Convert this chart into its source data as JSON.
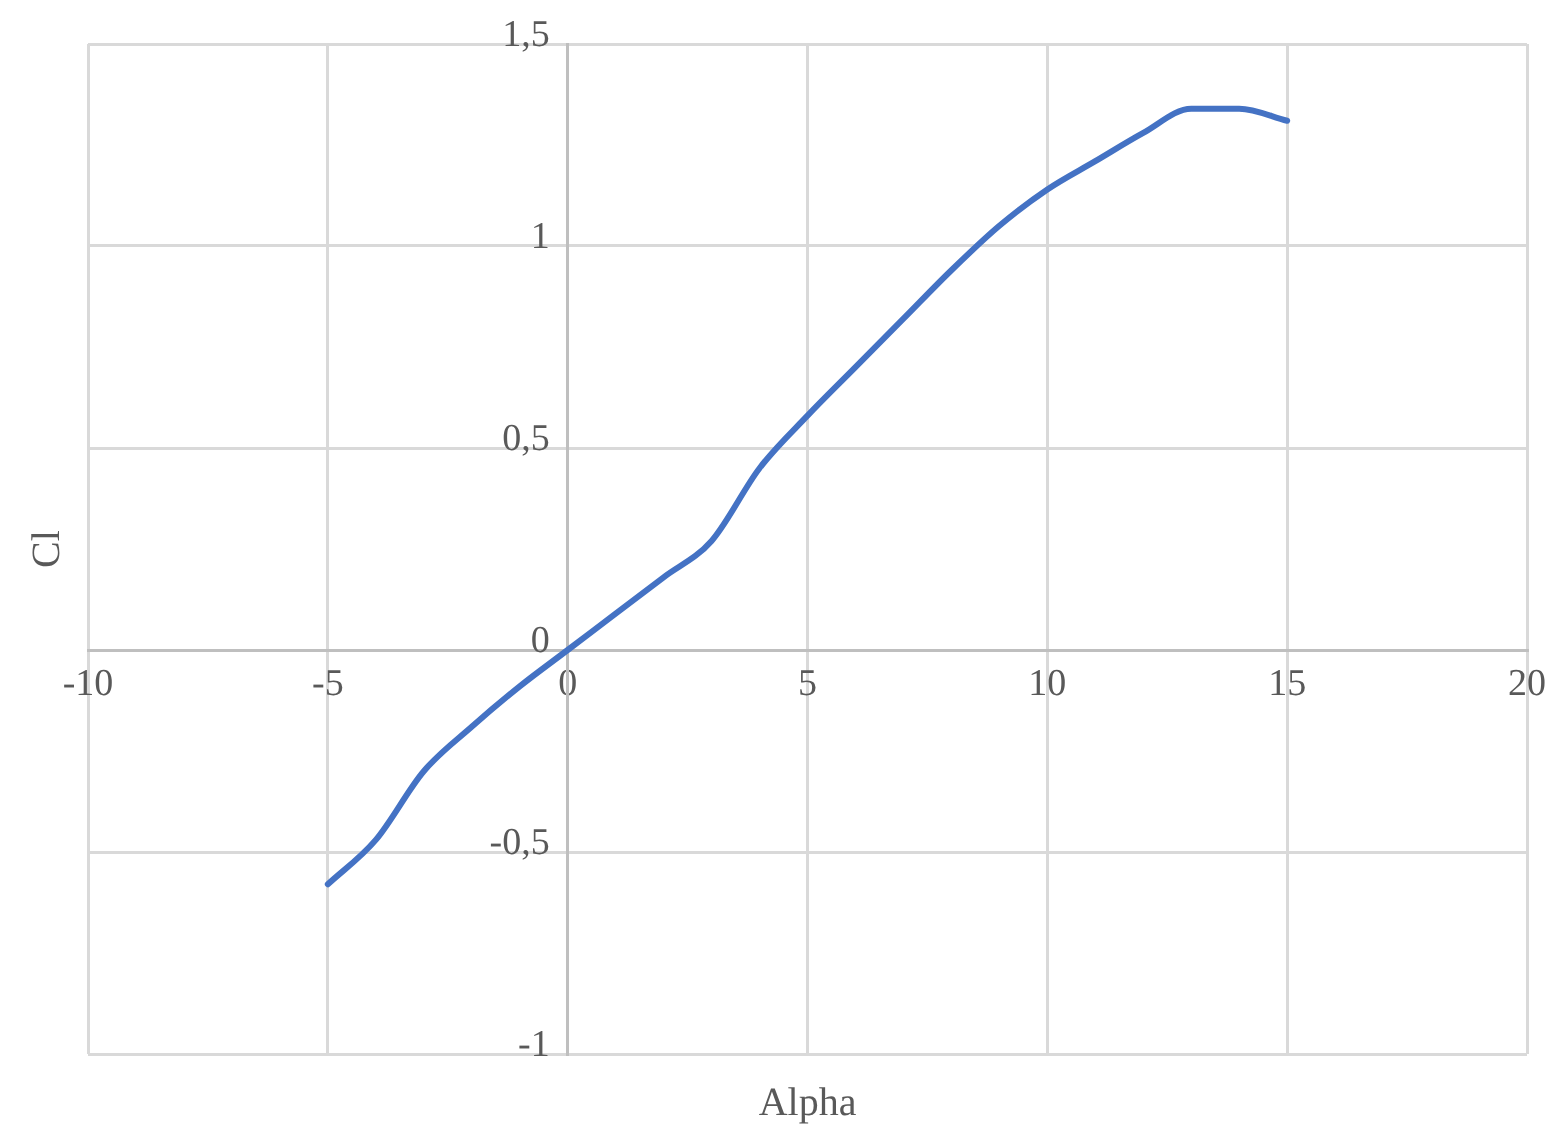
{
  "chart_data": {
    "type": "line",
    "xlabel": "Alpha",
    "ylabel": "Cl",
    "x": [
      -5,
      -4,
      -3,
      -2,
      -1,
      0,
      1,
      2,
      3,
      4,
      5,
      6,
      7,
      8,
      9,
      10,
      11,
      12,
      13,
      14,
      15
    ],
    "series": [
      {
        "color": "#4472c4",
        "values": [
          -0.58,
          -0.47,
          -0.3,
          -0.19,
          -0.09,
          0,
          0.09,
          0.18,
          0.27,
          0.45,
          0.58,
          0.7,
          0.82,
          0.94,
          1.05,
          1.14,
          1.21,
          1.28,
          1.34,
          1.34,
          1.31
        ]
      }
    ],
    "xlim": [
      -10,
      20
    ],
    "xticks": [
      -10,
      -5,
      0,
      5,
      10,
      15,
      20
    ],
    "ylim": [
      -1,
      1.5
    ],
    "yticks": [
      {
        "value": -1,
        "label": "-1"
      },
      {
        "value": -0.5,
        "label": "-0,5"
      },
      {
        "value": 0,
        "label": "0"
      },
      {
        "value": 0.5,
        "label": "0,5"
      },
      {
        "value": 1,
        "label": "1"
      },
      {
        "value": 1.5,
        "label": "1,5"
      }
    ],
    "grid": true,
    "legend": false,
    "marker": "none",
    "line_style": "solid"
  }
}
